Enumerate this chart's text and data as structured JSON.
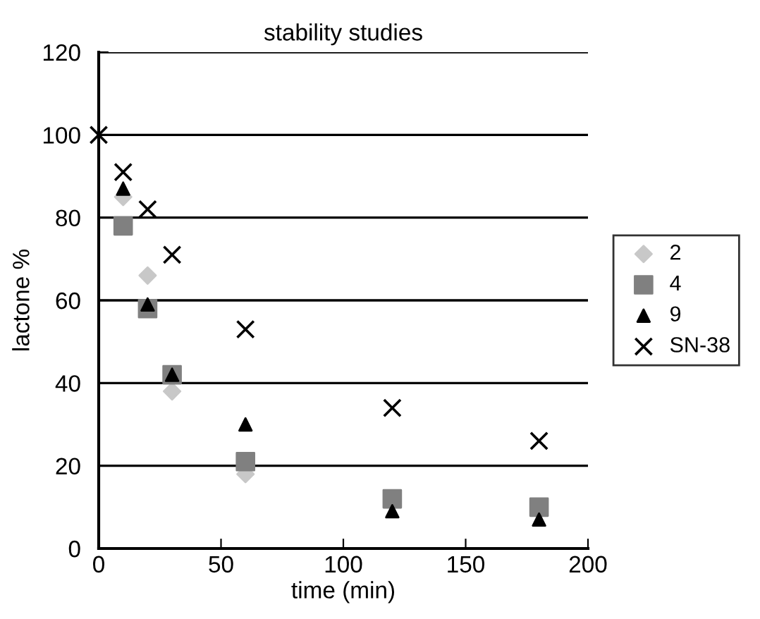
{
  "chart_data": {
    "type": "scatter",
    "title": "stability studies",
    "xlabel": "time (min)",
    "ylabel": "lactone %",
    "x": [
      0,
      10,
      20,
      30,
      60,
      120,
      180
    ],
    "series": [
      {
        "name": "2",
        "color": "#c8c8c8",
        "marker": "diamond",
        "values": [
          null,
          85,
          66,
          38,
          18,
          null,
          null
        ]
      },
      {
        "name": "4",
        "color": "#808080",
        "marker": "square",
        "values": [
          null,
          78,
          58,
          42,
          21,
          12,
          10
        ]
      },
      {
        "name": "9",
        "color": "#000000",
        "marker": "triangle",
        "values": [
          null,
          87,
          59,
          42,
          30,
          9,
          7
        ]
      },
      {
        "name": "SN-38",
        "color": "#000000",
        "marker": "cross",
        "values": [
          100,
          91,
          82,
          71,
          53,
          34,
          26
        ]
      }
    ],
    "xlim": [
      0,
      200
    ],
    "xticks": [
      0,
      50,
      100,
      150,
      200
    ],
    "ylim": [
      0,
      120
    ],
    "yticks": [
      0,
      20,
      40,
      60,
      80,
      100,
      120
    ],
    "grid": "y",
    "legend": "right"
  }
}
